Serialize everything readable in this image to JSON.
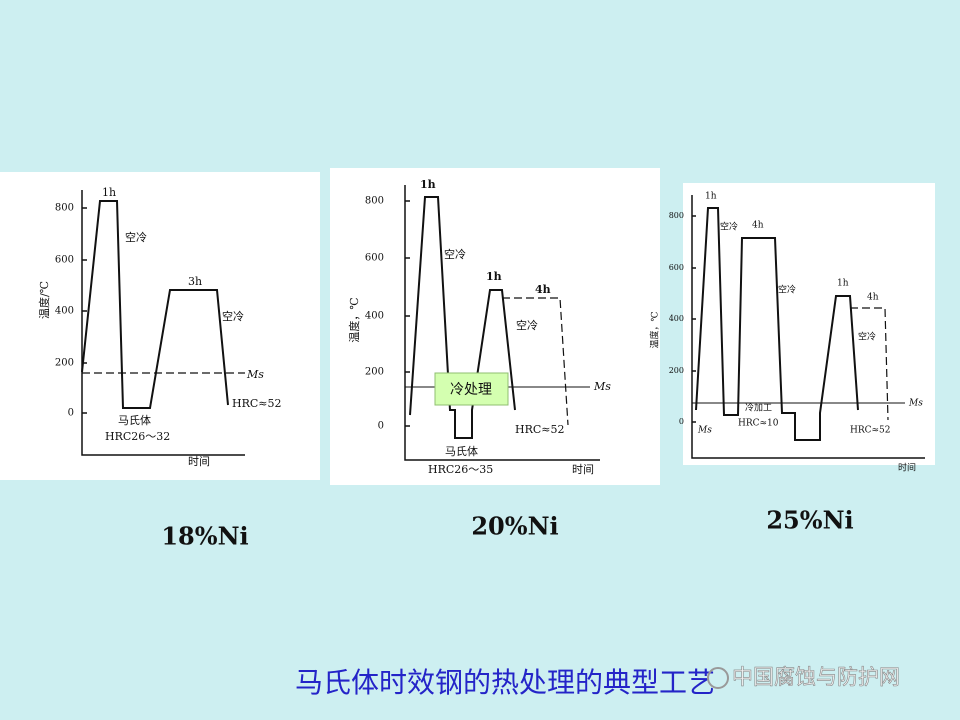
{
  "panels": [
    {
      "caption": "18%Ni",
      "y_label": "温度/℃",
      "y_ticks": [
        800,
        600,
        400,
        200,
        0
      ],
      "x_label": "时间",
      "annotations": [
        "1h",
        "空冷",
        "3h",
        "空冷",
        "Ms",
        "马氏体",
        "HRC26～32",
        "HRC≈52"
      ]
    },
    {
      "caption": "20%Ni",
      "y_label": "温度，℃",
      "y_ticks": [
        800,
        600,
        400,
        200,
        0
      ],
      "x_label": "时间",
      "annotations": [
        "1h",
        "空冷",
        "1h",
        "4h",
        "空冷",
        "Ms",
        "冷处理",
        "马氏体",
        "HRC26～35",
        "HRC≈52"
      ]
    },
    {
      "caption": "25%Ni",
      "y_label": "温度，℃",
      "y_ticks": [
        800,
        600,
        400,
        200,
        0
      ],
      "x_label": "时间",
      "annotations": [
        "1h",
        "空冷",
        "4h",
        "空冷",
        "1h",
        "4h",
        "空冷",
        "Ms",
        "冷加工",
        "HRC≈10",
        "Ms",
        "HRC≈52"
      ]
    }
  ],
  "title": "马氏体时效钢的热处理的典型工艺",
  "watermark": "中国腐蚀与防护网"
}
